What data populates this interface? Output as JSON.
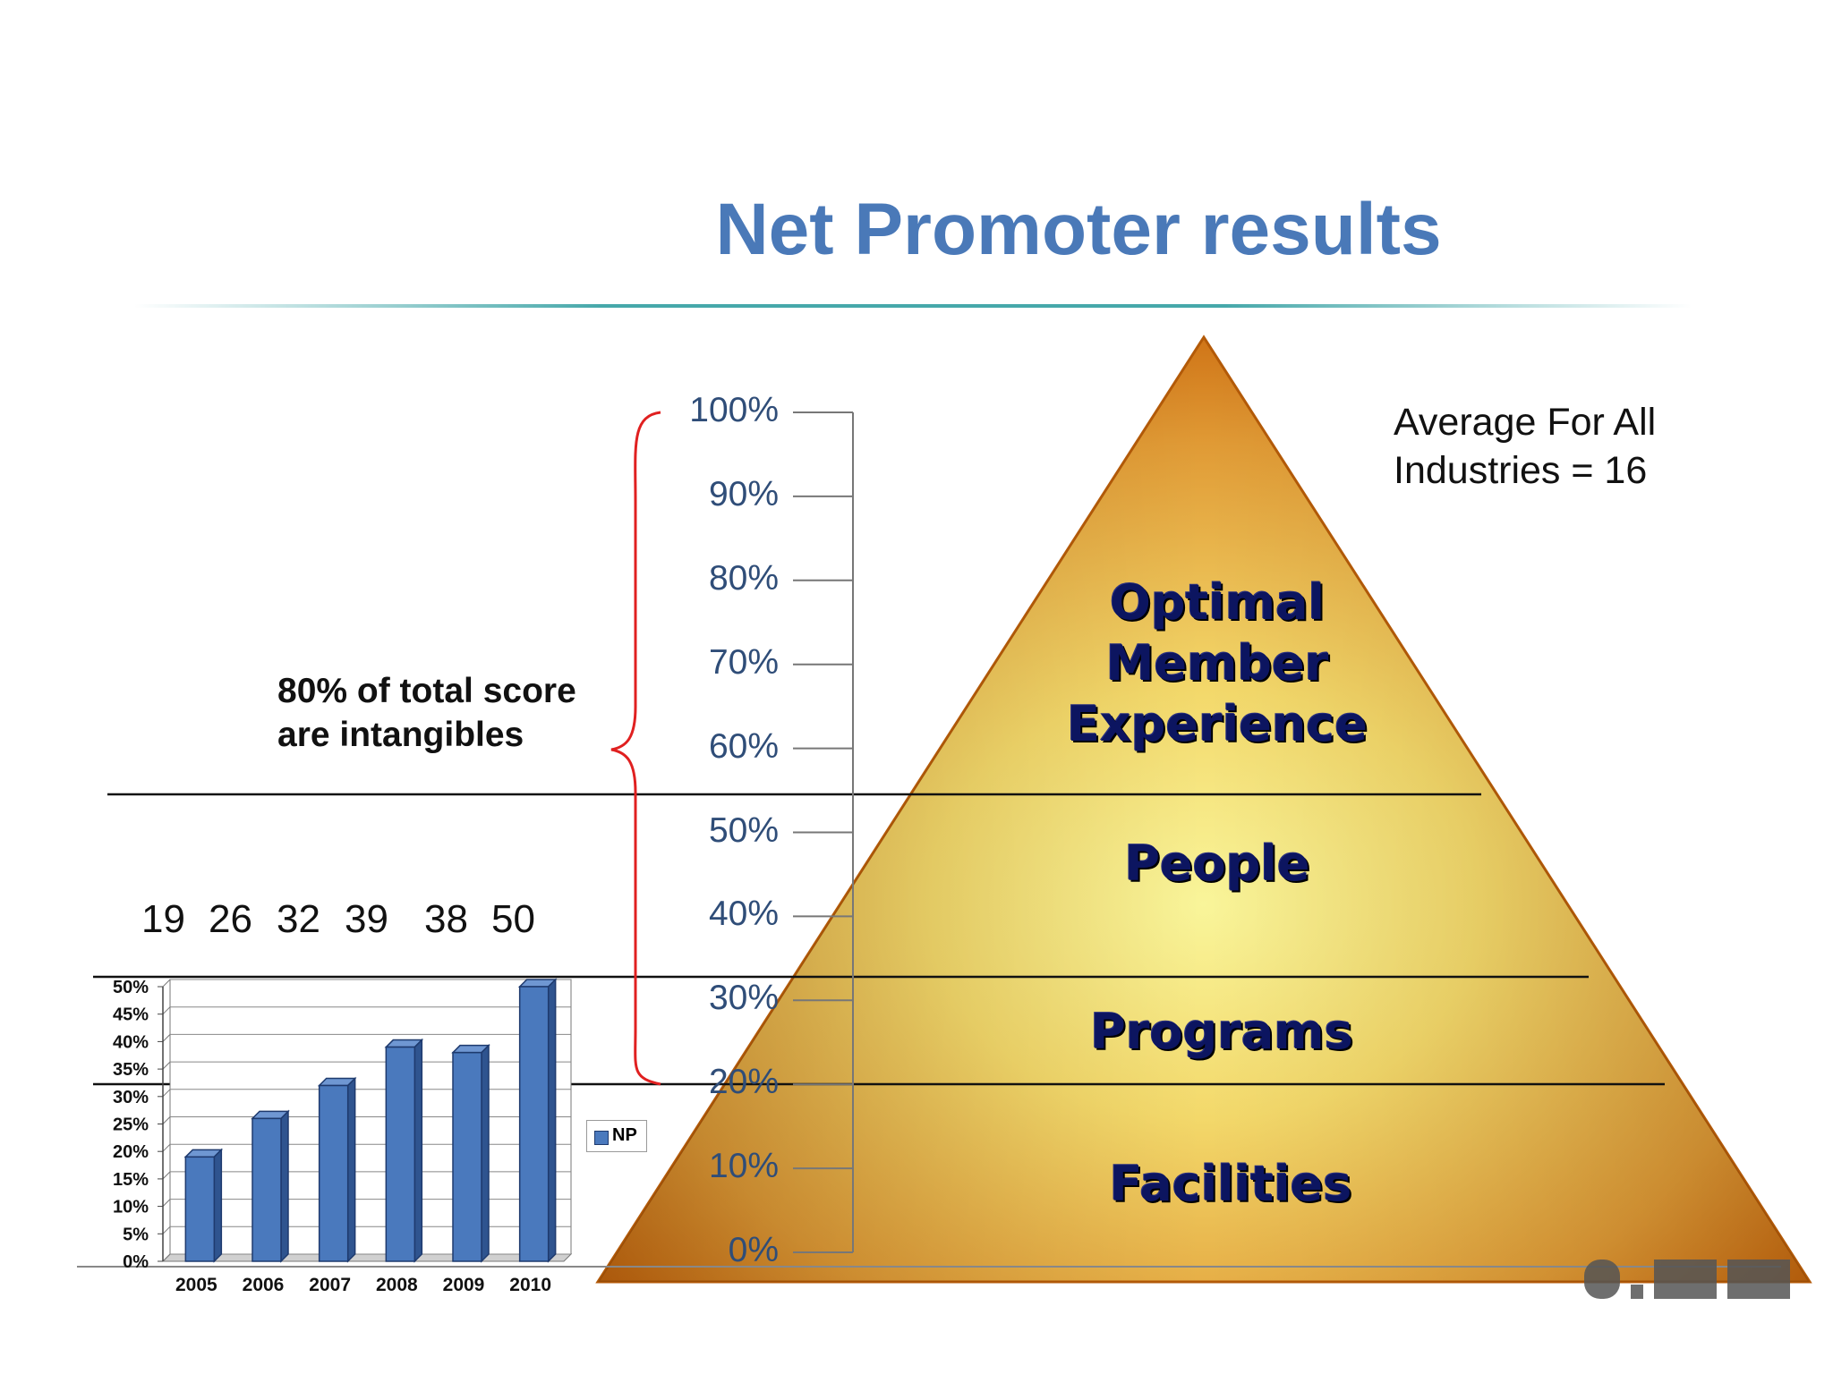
{
  "title": "Net Promoter results",
  "note": {
    "line1": "80% of total score",
    "line2": "are intangibles"
  },
  "average": {
    "line1": "Average For All",
    "line2": "Industries = 16"
  },
  "scale_ticks": [
    "100%",
    "90%",
    "80%",
    "70%",
    "60%",
    "50%",
    "40%",
    "30%",
    "20%",
    "10%",
    "0%"
  ],
  "pyramid_layers": [
    {
      "lines": [
        "Optimal",
        "Member",
        "Experience"
      ]
    },
    {
      "lines": [
        "People"
      ]
    },
    {
      "lines": [
        "Programs"
      ]
    },
    {
      "lines": [
        "Facilities"
      ]
    }
  ],
  "np_values": [
    "19",
    "26",
    "32",
    "39",
    "38",
    "50"
  ],
  "legend": {
    "label": "NP"
  },
  "colors": {
    "title": "#4a79b8",
    "bar": "#4a79bd",
    "brace": "#e02020",
    "pyramid_light": "#f7f07a",
    "pyramid_dark": "#c8640a",
    "layer_text": "#0c1560"
  },
  "chart_data": {
    "type": "bar",
    "categories": [
      "2005",
      "2006",
      "2007",
      "2008",
      "2009",
      "2010"
    ],
    "series": [
      {
        "name": "NP",
        "values": [
          19,
          26,
          32,
          39,
          38,
          50
        ]
      }
    ],
    "y_ticks": [
      "50%",
      "45%",
      "40%",
      "35%",
      "30%",
      "25%",
      "20%",
      "15%",
      "10%",
      "5%",
      "0%"
    ],
    "ylim": [
      0,
      50
    ],
    "unit": "%",
    "grid": true,
    "legend_position": "right"
  }
}
